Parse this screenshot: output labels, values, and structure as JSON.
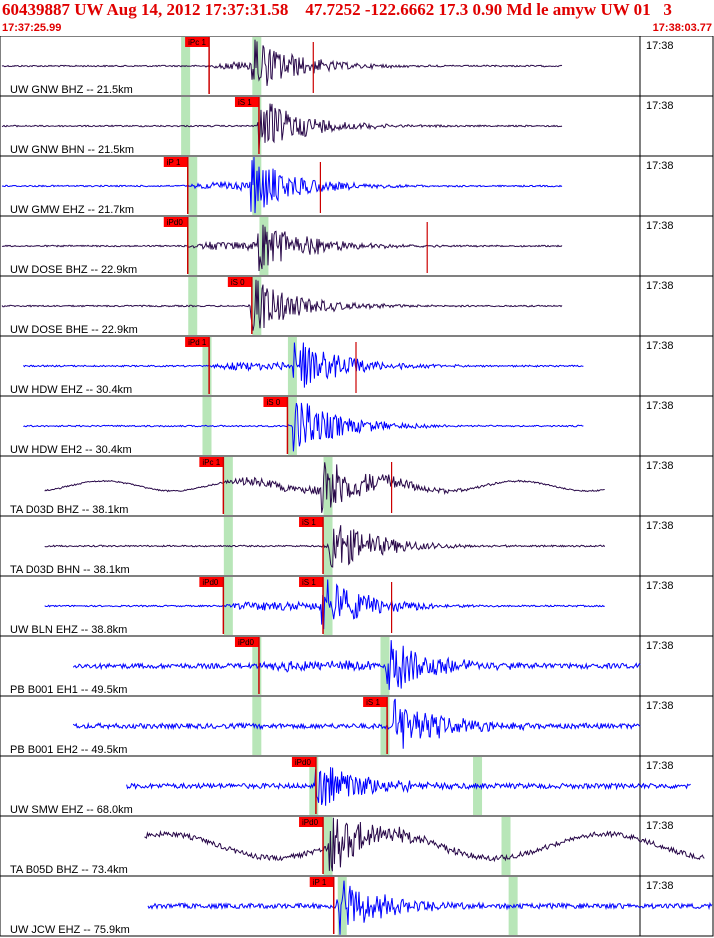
{
  "header": {
    "title": "60439887 UW Aug 14, 2012 17:37:31.58    47.7252 -122.6662 17.3 0.90 Md le amyw UW 01   3",
    "start_time": "17:37:25.99",
    "end_time": "17:38:03.77"
  },
  "colors": {
    "header_red": "#e00000",
    "pick_red": "#ff0000",
    "pick_window_green": "#b8e6b8",
    "trace_blue": "#0000ff",
    "trace_purple": "#2a0a4a"
  },
  "chart_data": {
    "type": "line",
    "title": "",
    "x_axis": {
      "start": "17:37:25.99",
      "end": "17:38:03.77",
      "tick_label": "17:38"
    },
    "traces": [
      {
        "label": "UW GNW BHZ -- 21.5km",
        "color": "#2a0a4a",
        "start": 0.0,
        "end": 0.79,
        "arrival": 0.36,
        "pick_marks": [
          {
            "text": "iPc 1",
            "pos": 0.26
          }
        ],
        "red_spikes": [
          0.44
        ],
        "green_windows": [
          0.26,
          0.36
        ]
      },
      {
        "label": "UW GNW BHN -- 21.5km",
        "color": "#2a0a4a",
        "start": 0.0,
        "end": 0.79,
        "arrival": 0.37,
        "pick_marks": [
          {
            "text": "iS 1",
            "pos": 0.33
          }
        ],
        "red_spikes": [],
        "green_windows": [
          0.26,
          0.36
        ]
      },
      {
        "label": "UW GMW EHZ -- 21.7km",
        "color": "#0000ff",
        "start": 0.0,
        "end": 0.79,
        "arrival": 0.36,
        "pick_marks": [
          {
            "text": "iP 1",
            "pos": 0.23
          }
        ],
        "red_spikes": [
          0.45
        ],
        "green_windows": [
          0.27,
          0.36
        ]
      },
      {
        "label": "UW DOSE BHZ -- 22.9km",
        "color": "#2a0a4a",
        "start": 0.0,
        "end": 0.79,
        "arrival": 0.37,
        "pick_marks": [
          {
            "text": "iPd0",
            "pos": 0.23
          }
        ],
        "red_spikes": [
          0.6
        ],
        "green_windows": [
          0.27,
          0.37
        ]
      },
      {
        "label": "UW DOSE BHE -- 22.9km",
        "color": "#2a0a4a",
        "start": 0.0,
        "end": 0.79,
        "arrival": 0.36,
        "pick_marks": [
          {
            "text": "iS 0",
            "pos": 0.32
          }
        ],
        "red_spikes": [],
        "green_windows": [
          0.27,
          0.36
        ]
      },
      {
        "label": "UW HDW EHZ -- 30.4km",
        "color": "#0000ff",
        "start": 0.03,
        "end": 0.82,
        "arrival": 0.42,
        "pick_marks": [
          {
            "text": "iPd 1",
            "pos": 0.26
          }
        ],
        "red_spikes": [
          0.5
        ],
        "green_windows": [
          0.29,
          0.41
        ]
      },
      {
        "label": "UW HDW EH2 -- 30.4km",
        "color": "#0000ff",
        "start": 0.03,
        "end": 0.82,
        "arrival": 0.42,
        "pick_marks": [
          {
            "text": "iS 0",
            "pos": 0.37
          }
        ],
        "red_spikes": [],
        "green_windows": [
          0.29,
          0.41
        ]
      },
      {
        "label": "TA D03D BHZ -- 38.1km",
        "color": "#2a0a4a",
        "start": 0.06,
        "end": 0.85,
        "arrival": 0.46,
        "pick_marks": [
          {
            "text": "iPc 1",
            "pos": 0.28
          }
        ],
        "red_spikes": [
          0.55
        ],
        "green_windows": [
          0.32,
          0.46
        ]
      },
      {
        "label": "TA D03D BHN -- 38.1km",
        "color": "#2a0a4a",
        "start": 0.06,
        "end": 0.85,
        "arrival": 0.47,
        "pick_marks": [
          {
            "text": "iS 1",
            "pos": 0.42
          }
        ],
        "red_spikes": [],
        "green_windows": [
          0.32,
          0.46
        ]
      },
      {
        "label": "UW BLN EHZ -- 38.8km",
        "color": "#0000ff",
        "start": 0.06,
        "end": 0.85,
        "arrival": 0.46,
        "pick_marks": [
          {
            "text": "iPd0",
            "pos": 0.28
          },
          {
            "text": "iS 1",
            "pos": 0.42
          }
        ],
        "red_spikes": [
          0.55
        ],
        "green_windows": [
          0.32,
          0.46
        ]
      },
      {
        "label": "PB B001 EH1 -- 49.5km",
        "color": "#0000ff",
        "start": 0.1,
        "end": 0.9,
        "arrival": 0.55,
        "pick_marks": [
          {
            "text": "iPd0",
            "pos": 0.33
          }
        ],
        "red_spikes": [],
        "green_windows": [
          0.36,
          0.54
        ]
      },
      {
        "label": "PB B001 EH2 -- 49.5km",
        "color": "#0000ff",
        "start": 0.1,
        "end": 0.9,
        "arrival": 0.56,
        "pick_marks": [
          {
            "text": "iS 1",
            "pos": 0.51
          }
        ],
        "red_spikes": [],
        "green_windows": [
          0.36,
          0.54
        ]
      },
      {
        "label": "UW SMW EHZ -- 68.0km",
        "color": "#0000ff",
        "start": 0.175,
        "end": 0.97,
        "arrival": 0.45,
        "pick_marks": [
          {
            "text": "iPd0",
            "pos": 0.41
          }
        ],
        "red_spikes": [],
        "green_windows": [
          0.44,
          0.67
        ]
      },
      {
        "label": "TA B05D BHZ -- 73.4km",
        "color": "#2a0a4a",
        "start": 0.2,
        "end": 0.99,
        "arrival": 0.47,
        "pick_marks": [
          {
            "text": "iPd0",
            "pos": 0.42
          }
        ],
        "red_spikes": [],
        "green_windows": [
          0.46,
          0.71
        ]
      },
      {
        "label": "UW JCW EHZ -- 75.9km",
        "color": "#0000ff",
        "start": 0.205,
        "end": 1.0,
        "arrival": 0.48,
        "pick_marks": [
          {
            "text": "iP 1",
            "pos": 0.435
          }
        ],
        "red_spikes": [],
        "green_windows": [
          0.48,
          0.72
        ]
      }
    ]
  }
}
